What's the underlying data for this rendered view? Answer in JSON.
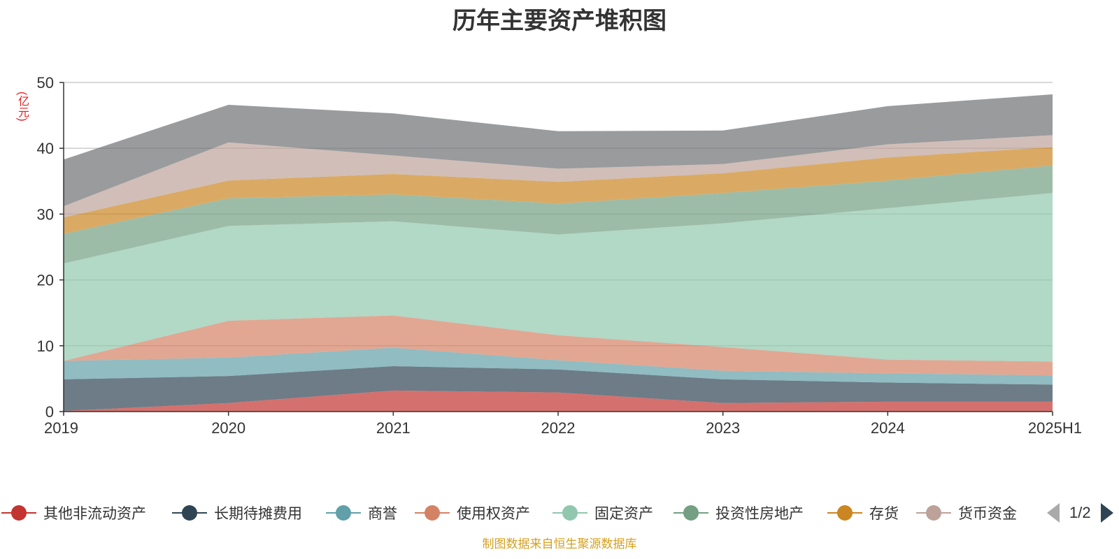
{
  "chart_data": {
    "type": "area",
    "stacked": true,
    "title": "历年主要资产堆积图",
    "ylabel": "(亿元)",
    "xlabel": "",
    "categories": [
      "2019",
      "2020",
      "2021",
      "2022",
      "2023",
      "2024",
      "2025H1"
    ],
    "ylim": [
      0,
      50
    ],
    "yticks": [
      0,
      10,
      20,
      30,
      40,
      50
    ],
    "grid": true,
    "legend_position": "bottom",
    "series": [
      {
        "name": "其他非流动资产",
        "color": "#c23531",
        "values": [
          0.1,
          1.3,
          3.2,
          2.9,
          1.3,
          1.5,
          1.5
        ]
      },
      {
        "name": "长期待摊费用",
        "color": "#2f4554",
        "values": [
          4.8,
          4.1,
          3.7,
          3.5,
          3.6,
          2.9,
          2.6
        ]
      },
      {
        "name": "商誉",
        "color": "#61a0a8",
        "values": [
          2.8,
          2.8,
          2.8,
          1.4,
          1.3,
          1.4,
          1.4
        ]
      },
      {
        "name": "使用权资产",
        "color": "#d48265",
        "values": [
          0.0,
          5.6,
          4.9,
          3.8,
          3.6,
          2.1,
          2.1
        ]
      },
      {
        "name": "固定资产",
        "color": "#91c7ae",
        "values": [
          14.8,
          14.4,
          14.3,
          15.3,
          18.8,
          23.0,
          25.6
        ]
      },
      {
        "name": "投资性房地产",
        "color": "#749f83",
        "values": [
          4.5,
          4.2,
          4.1,
          4.7,
          4.6,
          4.2,
          4.2
        ]
      },
      {
        "name": "存货",
        "color": "#ca8622",
        "values": [
          2.5,
          2.7,
          3.1,
          3.3,
          3.0,
          3.5,
          2.8
        ]
      },
      {
        "name": "货币资金",
        "color": "#bda29a",
        "values": [
          1.7,
          5.8,
          2.8,
          2.0,
          1.4,
          2.0,
          1.8
        ]
      },
      {
        "name": "",
        "color": "#6e7074",
        "values": [
          7.1,
          5.7,
          6.4,
          5.7,
          5.1,
          5.8,
          6.2
        ]
      }
    ]
  },
  "legend": {
    "page": "1/2"
  },
  "source": "制图数据来自恒生聚源数据库"
}
